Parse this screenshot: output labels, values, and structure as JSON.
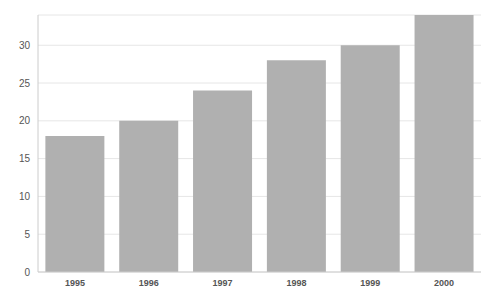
{
  "chart_data": {
    "type": "bar",
    "categories": [
      "1995",
      "1996",
      "1997",
      "1998",
      "1999",
      "2000"
    ],
    "values": [
      18,
      20,
      24,
      28,
      30,
      34
    ],
    "color": "#b0b0b0",
    "ylim": [
      0,
      34
    ],
    "yticks": [
      0,
      5,
      10,
      15,
      20,
      25,
      30
    ],
    "grid": true
  }
}
